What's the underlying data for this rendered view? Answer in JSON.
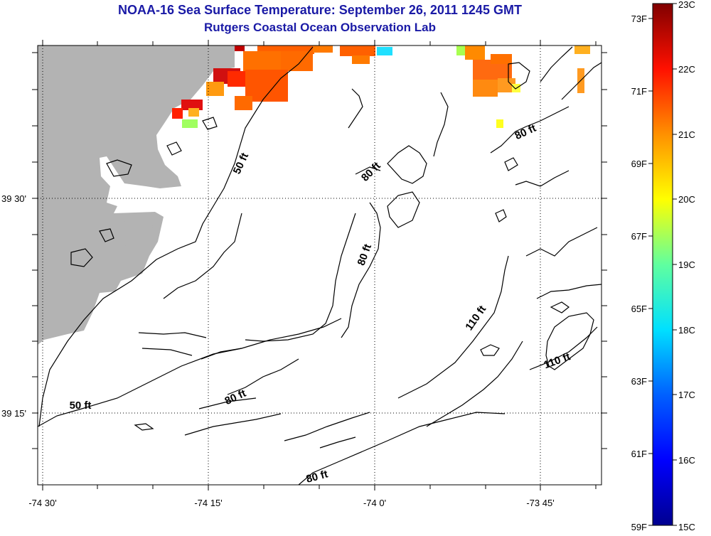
{
  "header": {
    "title": "NOAA-16 Sea Surface Temperature:  September 26, 2011 1245 GMT",
    "subtitle": "Rutgers Coastal Ocean Observation Lab"
  },
  "map": {
    "lon_labels": [
      "-74 30'",
      "-74 15'",
      "-74 0'",
      "-73 45'"
    ],
    "lat_labels": [
      "39 30'",
      "39 15'"
    ],
    "depth_labels": [
      "50 ft",
      "50 ft",
      "80 ft",
      "80 ft",
      "80 ft",
      "80 ft",
      "80 ft",
      "110 ft",
      "110 ft"
    ],
    "land_color": "#b3b3b3"
  },
  "colorbar": {
    "fahrenheit_labels": [
      "73F",
      "71F",
      "69F",
      "67F",
      "65F",
      "63F",
      "61F",
      "59F"
    ],
    "celsius_labels": [
      "23C",
      "22C",
      "21C",
      "20C",
      "19C",
      "18C",
      "17C",
      "16C",
      "15C"
    ],
    "colors": [
      "#00008f",
      "#0000ff",
      "#0080ff",
      "#00ffff",
      "#80ff80",
      "#ffff00",
      "#ff8000",
      "#ff0000",
      "#800000"
    ]
  }
}
